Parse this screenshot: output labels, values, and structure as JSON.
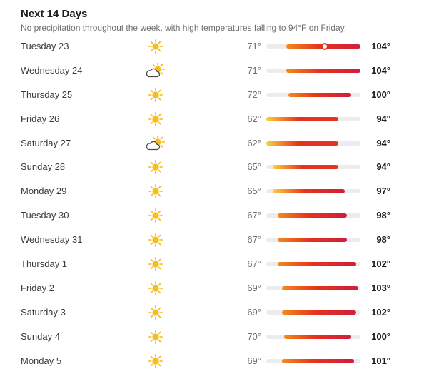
{
  "forecast": {
    "title": "Next 14 Days",
    "summary": "No precipitation throughout the week, with high temperatures falling to 94°F on Friday.",
    "scale": {
      "min": 62,
      "max": 104
    },
    "colors": {
      "cool": "#ffcf3a",
      "warm": "#f28a1e",
      "hot": "#e5331d",
      "hottest": "#cf1d3f",
      "track": "#ececee"
    },
    "days": [
      {
        "day": "Tuesday 23",
        "icon": "sun-icon",
        "low": "71°",
        "high": "104°",
        "low_value": 71,
        "high_value": 104,
        "current_value": 88
      },
      {
        "day": "Wednesday 24",
        "icon": "partly-cloudy-icon",
        "low": "71°",
        "high": "104°",
        "low_value": 71,
        "high_value": 104
      },
      {
        "day": "Thursday 25",
        "icon": "sun-icon",
        "low": "72°",
        "high": "100°",
        "low_value": 72,
        "high_value": 100
      },
      {
        "day": "Friday 26",
        "icon": "sun-icon",
        "low": "62°",
        "high": "94°",
        "low_value": 62,
        "high_value": 94
      },
      {
        "day": "Saturday 27",
        "icon": "partly-cloudy-icon",
        "low": "62°",
        "high": "94°",
        "low_value": 62,
        "high_value": 94
      },
      {
        "day": "Sunday 28",
        "icon": "sun-icon",
        "low": "65°",
        "high": "94°",
        "low_value": 65,
        "high_value": 94
      },
      {
        "day": "Monday 29",
        "icon": "sun-icon",
        "low": "65°",
        "high": "97°",
        "low_value": 65,
        "high_value": 97
      },
      {
        "day": "Tuesday 30",
        "icon": "sun-icon",
        "low": "67°",
        "high": "98°",
        "low_value": 67,
        "high_value": 98
      },
      {
        "day": "Wednesday 31",
        "icon": "sun-icon",
        "low": "67°",
        "high": "98°",
        "low_value": 67,
        "high_value": 98
      },
      {
        "day": "Thursday 1",
        "icon": "sun-icon",
        "low": "67°",
        "high": "102°",
        "low_value": 67,
        "high_value": 102
      },
      {
        "day": "Friday 2",
        "icon": "sun-icon",
        "low": "69°",
        "high": "103°",
        "low_value": 69,
        "high_value": 103
      },
      {
        "day": "Saturday 3",
        "icon": "sun-icon",
        "low": "69°",
        "high": "102°",
        "low_value": 69,
        "high_value": 102
      },
      {
        "day": "Sunday 4",
        "icon": "sun-icon",
        "low": "70°",
        "high": "100°",
        "low_value": 70,
        "high_value": 100
      },
      {
        "day": "Monday 5",
        "icon": "sun-icon",
        "low": "69°",
        "high": "101°",
        "low_value": 69,
        "high_value": 101
      }
    ]
  }
}
